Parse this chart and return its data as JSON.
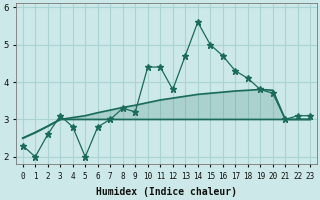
{
  "xlabel": "Humidex (Indice chaleur)",
  "bg_color": "#cce8e8",
  "line_color": "#1a6b5a",
  "grid_color": "#aad4d4",
  "xlim": [
    -0.5,
    23.5
  ],
  "ylim": [
    1.8,
    6.1
  ],
  "xticks": [
    0,
    1,
    2,
    3,
    4,
    5,
    6,
    7,
    8,
    9,
    10,
    11,
    12,
    13,
    14,
    15,
    16,
    17,
    18,
    19,
    20,
    21,
    22,
    23
  ],
  "yticks": [
    2,
    3,
    4,
    5,
    6
  ],
  "main_y": [
    2.3,
    2.0,
    2.6,
    3.1,
    2.8,
    2.0,
    2.8,
    3.0,
    3.3,
    3.2,
    4.4,
    4.4,
    3.8,
    4.7,
    5.6,
    5.0,
    4.7,
    4.3,
    4.1,
    3.8,
    3.7,
    3.0,
    3.1,
    3.1
  ],
  "upper_y": [
    2.5,
    2.65,
    2.82,
    3.0,
    3.05,
    3.1,
    3.18,
    3.25,
    3.32,
    3.38,
    3.45,
    3.52,
    3.57,
    3.62,
    3.67,
    3.7,
    3.73,
    3.76,
    3.78,
    3.8,
    3.78,
    3.0,
    3.0,
    3.0
  ],
  "lower_y": [
    2.5,
    2.65,
    2.82,
    3.0,
    3.0,
    3.0,
    3.0,
    3.0,
    3.0,
    3.0,
    3.0,
    3.0,
    3.0,
    3.0,
    3.0,
    3.0,
    3.0,
    3.0,
    3.0,
    3.0,
    3.0,
    3.0,
    3.0,
    3.0
  ]
}
